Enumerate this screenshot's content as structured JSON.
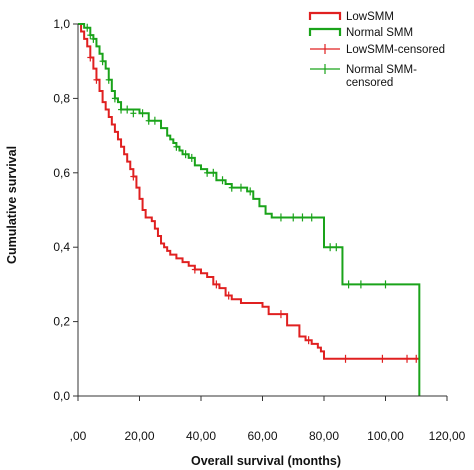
{
  "chart_data": {
    "type": "line",
    "subtype": "kaplan-meier-step",
    "xlabel": "Overall survival (months)",
    "ylabel": "Cumulative survival",
    "xlim": [
      0,
      120
    ],
    "ylim": [
      0,
      1
    ],
    "x_ticks": [
      {
        "value": 0,
        "label": ",00"
      },
      {
        "value": 20,
        "label": "20,00"
      },
      {
        "value": 40,
        "label": "40,00"
      },
      {
        "value": 60,
        "label": "60,00"
      },
      {
        "value": 80,
        "label": "80,00"
      },
      {
        "value": 100,
        "label": "100,00"
      },
      {
        "value": 120,
        "label": "120,00"
      }
    ],
    "y_ticks": [
      {
        "value": 0,
        "label": "0,0"
      },
      {
        "value": 0.2,
        "label": "0,2"
      },
      {
        "value": 0.4,
        "label": "0,4"
      },
      {
        "value": 0.6,
        "label": "0,6"
      },
      {
        "value": 0.8,
        "label": "0,8"
      },
      {
        "value": 1.0,
        "label": "1,0"
      }
    ],
    "grid": false,
    "legend_position": "top-right",
    "legend": [
      {
        "label": "LowSMM",
        "style": "line",
        "color": "#e02020"
      },
      {
        "label": "Normal SMM",
        "style": "line",
        "color": "#1aa31a"
      },
      {
        "label": "LowSMM-censored",
        "style": "censor",
        "color": "#e02020"
      },
      {
        "label": "Normal SMM-censored",
        "label_lines": [
          "Normal SMM-",
          "censored"
        ],
        "style": "censor",
        "color": "#1aa31a"
      }
    ],
    "series": [
      {
        "name": "LowSMM",
        "color": "#e02020",
        "steps": [
          [
            0,
            1.0
          ],
          [
            1,
            0.98
          ],
          [
            2,
            0.96
          ],
          [
            3,
            0.94
          ],
          [
            4,
            0.91
          ],
          [
            5,
            0.88
          ],
          [
            6,
            0.85
          ],
          [
            7,
            0.82
          ],
          [
            8,
            0.79
          ],
          [
            9,
            0.77
          ],
          [
            10,
            0.75
          ],
          [
            11,
            0.73
          ],
          [
            12,
            0.71
          ],
          [
            13,
            0.69
          ],
          [
            14,
            0.67
          ],
          [
            15,
            0.65
          ],
          [
            16,
            0.63
          ],
          [
            17,
            0.61
          ],
          [
            18,
            0.59
          ],
          [
            19,
            0.56
          ],
          [
            20,
            0.53
          ],
          [
            21,
            0.5
          ],
          [
            22,
            0.48
          ],
          [
            24,
            0.47
          ],
          [
            25,
            0.45
          ],
          [
            26,
            0.43
          ],
          [
            27,
            0.41
          ],
          [
            28,
            0.4
          ],
          [
            29,
            0.39
          ],
          [
            30,
            0.38
          ],
          [
            32,
            0.37
          ],
          [
            34,
            0.36
          ],
          [
            36,
            0.35
          ],
          [
            38,
            0.34
          ],
          [
            40,
            0.33
          ],
          [
            42,
            0.32
          ],
          [
            44,
            0.3
          ],
          [
            46,
            0.29
          ],
          [
            48,
            0.27
          ],
          [
            50,
            0.26
          ],
          [
            53,
            0.25
          ],
          [
            60,
            0.24
          ],
          [
            62,
            0.22
          ],
          [
            68,
            0.19
          ],
          [
            72,
            0.16
          ],
          [
            74,
            0.15
          ],
          [
            76,
            0.14
          ],
          [
            78,
            0.13
          ],
          [
            79,
            0.12
          ],
          [
            80,
            0.1
          ]
        ],
        "end_x": 111,
        "censored": [
          [
            4,
            0.91
          ],
          [
            6,
            0.85
          ],
          [
            18,
            0.59
          ],
          [
            38,
            0.34
          ],
          [
            45,
            0.3
          ],
          [
            49,
            0.27
          ],
          [
            66,
            0.22
          ],
          [
            75,
            0.15
          ],
          [
            87,
            0.1
          ],
          [
            99,
            0.1
          ],
          [
            107,
            0.1
          ],
          [
            110,
            0.1
          ]
        ]
      },
      {
        "name": "Normal SMM",
        "color": "#1aa31a",
        "steps": [
          [
            0,
            1.0
          ],
          [
            2,
            0.99
          ],
          [
            4,
            0.97
          ],
          [
            5,
            0.96
          ],
          [
            6,
            0.94
          ],
          [
            7,
            0.92
          ],
          [
            8,
            0.9
          ],
          [
            9,
            0.88
          ],
          [
            10,
            0.85
          ],
          [
            11,
            0.82
          ],
          [
            12,
            0.8
          ],
          [
            13,
            0.79
          ],
          [
            14,
            0.77
          ],
          [
            20,
            0.76
          ],
          [
            23,
            0.74
          ],
          [
            27,
            0.72
          ],
          [
            29,
            0.7
          ],
          [
            30,
            0.69
          ],
          [
            31,
            0.68
          ],
          [
            32,
            0.67
          ],
          [
            33,
            0.66
          ],
          [
            34,
            0.65
          ],
          [
            36,
            0.64
          ],
          [
            38,
            0.62
          ],
          [
            40,
            0.61
          ],
          [
            42,
            0.6
          ],
          [
            45,
            0.58
          ],
          [
            48,
            0.57
          ],
          [
            50,
            0.56
          ],
          [
            55,
            0.55
          ],
          [
            57,
            0.53
          ],
          [
            59,
            0.51
          ],
          [
            61,
            0.49
          ],
          [
            63,
            0.48
          ],
          [
            80,
            0.4
          ],
          [
            86,
            0.3
          ],
          [
            111,
            0.0
          ]
        ],
        "end_x": 111,
        "censored": [
          [
            3,
            0.99
          ],
          [
            4,
            0.97
          ],
          [
            5,
            0.96
          ],
          [
            8,
            0.9
          ],
          [
            10,
            0.85
          ],
          [
            12,
            0.8
          ],
          [
            14,
            0.77
          ],
          [
            16,
            0.77
          ],
          [
            18,
            0.76
          ],
          [
            21,
            0.76
          ],
          [
            23,
            0.74
          ],
          [
            25,
            0.74
          ],
          [
            32,
            0.67
          ],
          [
            35,
            0.65
          ],
          [
            37,
            0.64
          ],
          [
            42,
            0.6
          ],
          [
            44,
            0.6
          ],
          [
            47,
            0.58
          ],
          [
            50,
            0.56
          ],
          [
            53,
            0.56
          ],
          [
            56,
            0.55
          ],
          [
            66,
            0.48
          ],
          [
            70,
            0.48
          ],
          [
            73,
            0.48
          ],
          [
            76,
            0.48
          ],
          [
            82,
            0.4
          ],
          [
            84,
            0.4
          ],
          [
            88,
            0.3
          ],
          [
            92,
            0.3
          ],
          [
            100,
            0.3
          ]
        ]
      }
    ]
  }
}
